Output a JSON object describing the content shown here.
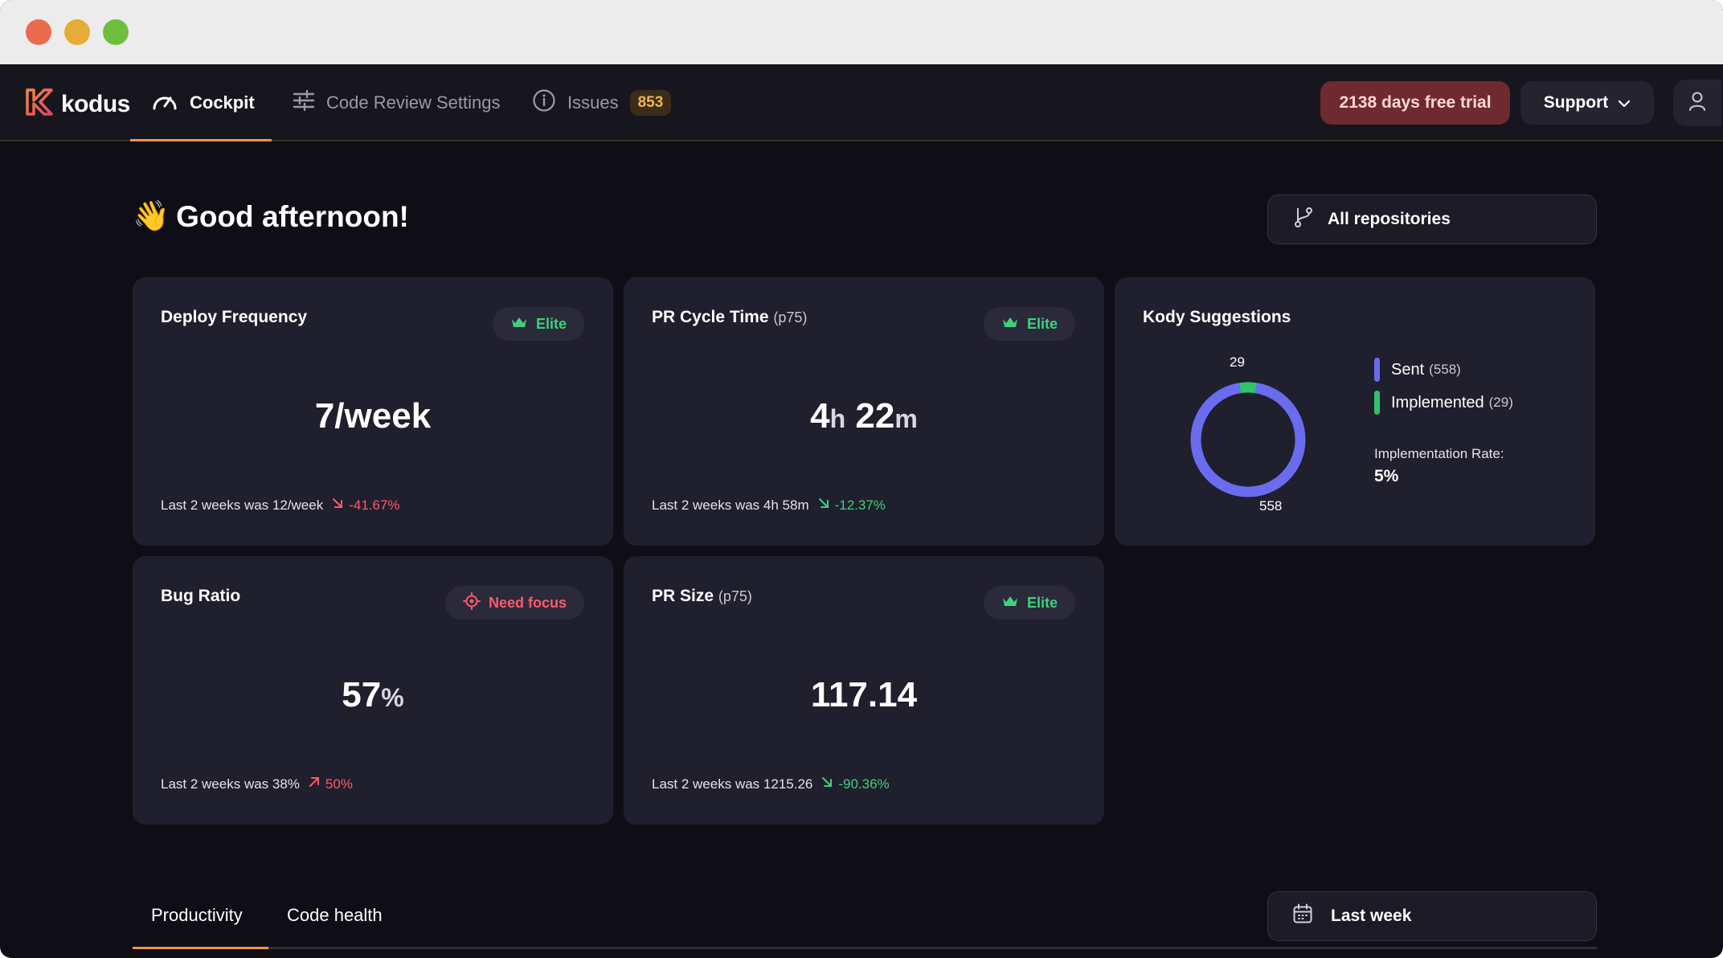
{
  "window": {
    "controls": [
      "close",
      "minimize",
      "maximize"
    ]
  },
  "brand": {
    "name": "kodus",
    "accent": "#f0954a"
  },
  "nav": {
    "tabs": [
      {
        "label": "Cockpit",
        "icon": "gauge-icon",
        "active": true
      },
      {
        "label": "Code Review Settings",
        "icon": "sliders-icon",
        "active": false
      },
      {
        "label": "Issues",
        "icon": "info-icon",
        "active": false,
        "badge": "853"
      }
    ],
    "trial_label": "2138 days free trial",
    "support_label": "Support",
    "user_icon": "user-icon"
  },
  "greeting": {
    "emoji": "👋",
    "text": "Good afternoon!"
  },
  "repo_filter": {
    "label": "All repositories",
    "icon": "git-branch-icon"
  },
  "metrics": {
    "deploy_frequency": {
      "title": "Deploy Frequency",
      "badge": "Elite",
      "value": "7/week",
      "footer": "Last 2 weeks was 12/week",
      "delta": "-41.67%",
      "trend": "down",
      "delta_color": "#ff5a6a"
    },
    "pr_cycle_time": {
      "title": "PR Cycle Time",
      "title_sub": "(p75)",
      "badge": "Elite",
      "value_hours": "4",
      "value_hours_unit": "h",
      "value_minutes": "22",
      "value_minutes_unit": "m",
      "footer": "Last 2 weeks was 4h 58m",
      "delta": "-12.37%",
      "trend": "down",
      "delta_color": "#3dd27a"
    },
    "bug_ratio": {
      "title": "Bug Ratio",
      "badge": "Need focus",
      "value": "57",
      "value_unit": "%",
      "footer": "Last 2 weeks was 38%",
      "delta": "50%",
      "trend": "up",
      "delta_color": "#ff5a6a"
    },
    "pr_size": {
      "title": "PR Size",
      "title_sub": "(p75)",
      "badge": "Elite",
      "value": "117.14",
      "footer": "Last 2 weeks was 1215.26",
      "delta": "-90.36%",
      "trend": "down",
      "delta_color": "#3dd27a"
    }
  },
  "kody": {
    "title": "Kody Suggestions",
    "sent_label": "Sent",
    "sent_count": "(558)",
    "implemented_label": "Implemented",
    "implemented_count": "(29)",
    "rate_label": "Implementation Rate:",
    "rate_value": "5%",
    "donut_top_label": "29",
    "donut_bottom_label": "558",
    "sent_color": "#6a6cf0",
    "implemented_color": "#2fc46c"
  },
  "chart_data": {
    "type": "pie",
    "categories": [
      "Sent",
      "Implemented"
    ],
    "values": [
      558,
      29
    ],
    "title": "Kody Suggestions"
  },
  "bottom_tabs": [
    {
      "label": "Productivity",
      "active": true
    },
    {
      "label": "Code health",
      "active": false
    }
  ],
  "period_filter": {
    "label": "Last week",
    "icon": "calendar-icon"
  }
}
